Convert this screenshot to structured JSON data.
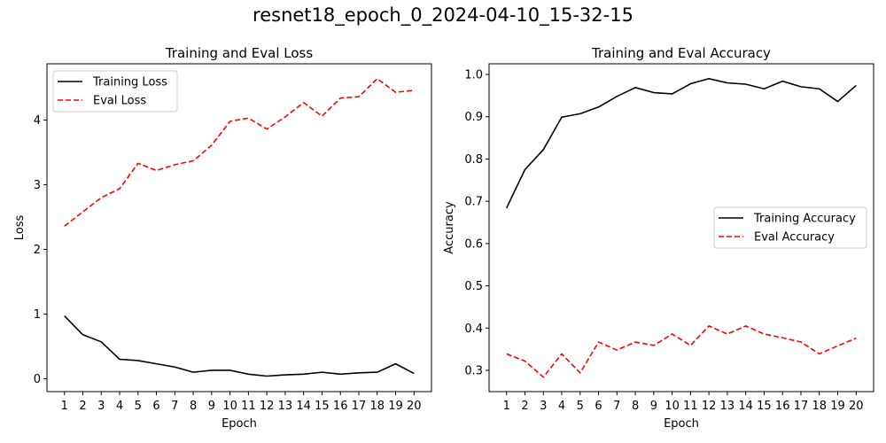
{
  "figure": {
    "title": "resnet18_epoch_0_2024-04-10_15-32-15"
  },
  "chart_data": [
    {
      "type": "line",
      "title": "Training and Eval Loss",
      "xlabel": "Epoch",
      "ylabel": "Loss",
      "x": [
        1,
        2,
        3,
        4,
        5,
        6,
        7,
        8,
        9,
        10,
        11,
        12,
        13,
        14,
        15,
        16,
        17,
        18,
        19,
        20
      ],
      "xlim": [
        0.05,
        20.95
      ],
      "ylim": [
        -0.2,
        4.87
      ],
      "yticks": [
        0,
        1,
        2,
        3,
        4
      ],
      "yticklabels": [
        "0",
        "1",
        "2",
        "3",
        "4"
      ],
      "legend_position": "upper left",
      "grid": false,
      "series": [
        {
          "name": "Training Loss",
          "color": "#000000",
          "style": "solid",
          "values": [
            0.97,
            0.68,
            0.57,
            0.3,
            0.28,
            0.23,
            0.18,
            0.1,
            0.13,
            0.13,
            0.07,
            0.04,
            0.06,
            0.07,
            0.1,
            0.07,
            0.09,
            0.1,
            0.23,
            0.08
          ]
        },
        {
          "name": "Eval Loss",
          "color": "#ff0000",
          "style": "dashed",
          "values": [
            2.36,
            2.58,
            2.8,
            2.94,
            3.33,
            3.22,
            3.31,
            3.37,
            3.61,
            3.98,
            4.03,
            3.86,
            4.05,
            4.27,
            4.06,
            4.34,
            4.36,
            4.64,
            4.43,
            4.46
          ]
        }
      ]
    },
    {
      "type": "line",
      "title": "Training and Eval Accuracy",
      "xlabel": "Epoch",
      "ylabel": "Accuracy",
      "x": [
        1,
        2,
        3,
        4,
        5,
        6,
        7,
        8,
        9,
        10,
        11,
        12,
        13,
        14,
        15,
        16,
        17,
        18,
        19,
        20
      ],
      "xlim": [
        0.05,
        20.95
      ],
      "ylim": [
        0.2497,
        1.0252
      ],
      "yticks": [
        0.3,
        0.4,
        0.5,
        0.6,
        0.7,
        0.8,
        0.9,
        1.0
      ],
      "yticklabels": [
        "0.3",
        "0.4",
        "0.5",
        "0.6",
        "0.7",
        "0.8",
        "0.9",
        "1.0"
      ],
      "legend_position": "center right",
      "grid": false,
      "series": [
        {
          "name": "Training Accuracy",
          "color": "#000000",
          "style": "solid",
          "values": [
            0.684,
            0.775,
            0.822,
            0.899,
            0.907,
            0.923,
            0.948,
            0.969,
            0.957,
            0.954,
            0.978,
            0.99,
            0.98,
            0.977,
            0.966,
            0.984,
            0.971,
            0.966,
            0.936,
            0.974
          ]
        },
        {
          "name": "Eval Accuracy",
          "color": "#ff0000",
          "style": "dashed",
          "values": [
            0.339,
            0.322,
            0.284,
            0.339,
            0.294,
            0.367,
            0.348,
            0.367,
            0.359,
            0.386,
            0.359,
            0.405,
            0.386,
            0.405,
            0.386,
            0.377,
            0.367,
            0.339,
            0.358,
            0.376
          ]
        }
      ]
    }
  ]
}
